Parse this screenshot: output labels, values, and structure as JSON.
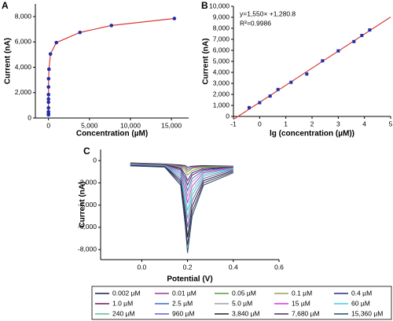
{
  "chart_data": [
    {
      "type": "line",
      "panel_label": "A",
      "x_label": "Concentration (µM)",
      "y_label": "Current (nA)",
      "x": [
        0.002,
        0.01,
        0.05,
        0.1,
        0.4,
        1,
        2.5,
        5,
        15,
        60,
        240,
        960,
        3840,
        7680,
        15360
      ],
      "values": [
        250,
        350,
        500,
        800,
        1250,
        1500,
        1850,
        2450,
        3100,
        3850,
        5050,
        5950,
        6750,
        7300,
        7850
      ],
      "marker_color": "#1f2fa8",
      "line_color": "#d63b3b",
      "xlim": [
        -1600,
        17100
      ],
      "xticks": [
        0,
        {
          "value": 5000,
          "label": "5,000"
        },
        {
          "value": 10000,
          "label": "10,000"
        },
        {
          "value": 15000,
          "label": "15,000"
        }
      ],
      "ylim": [
        0,
        9000
      ],
      "yticks": [
        0,
        {
          "value": 2000,
          "label": "2,000"
        },
        {
          "value": 4000,
          "label": "4,000"
        },
        {
          "value": 6000,
          "label": "6,000"
        },
        {
          "value": 8000,
          "label": "8,000"
        }
      ]
    },
    {
      "type": "scatter",
      "panel_label": "B",
      "x_label": "lg (concentration (µM))",
      "y_label": "Current (nA)",
      "x": [
        -0.4,
        0,
        0.4,
        0.7,
        1.2,
        1.8,
        2.4,
        3.0,
        3.6,
        3.9,
        4.2
      ],
      "values": [
        800,
        1250,
        1850,
        2450,
        3100,
        3850,
        5050,
        5950,
        6800,
        7350,
        7850
      ],
      "color": "#1f2fa8",
      "fit_line": {
        "slope": 1550,
        "intercept": 1280.8,
        "color": "#d63b3b"
      },
      "annotations": [
        "y=1,550× +1,280.8",
        "R²=0.9986"
      ],
      "xlim": [
        -1,
        5
      ],
      "xticks": [
        -1,
        0,
        1,
        2,
        3,
        4,
        5
      ],
      "ylim": [
        0,
        10000
      ],
      "yticks": [
        0,
        {
          "value": 1000,
          "label": "1,000"
        },
        {
          "value": 2000,
          "label": "2,000"
        },
        {
          "value": 3000,
          "label": "3,000"
        },
        {
          "value": 4000,
          "label": "4,000"
        },
        {
          "value": 5000,
          "label": "5,000"
        },
        {
          "value": 6000,
          "label": "6,000"
        },
        {
          "value": 7000,
          "label": "7,000"
        },
        {
          "value": 8000,
          "label": "8,000"
        },
        {
          "value": 9000,
          "label": "9,000"
        },
        {
          "value": 10000,
          "label": "10,000"
        }
      ]
    },
    {
      "type": "line",
      "panel_label": "C",
      "x_label": "Potential (V)",
      "y_label": "Current (nA)",
      "legend": "bottom",
      "x": [
        -0.05,
        0.1,
        0.17,
        0.19,
        0.2,
        0.22,
        0.27,
        0.4
      ],
      "series": [
        {
          "name": "0.002 µM",
          "color": "#1a1a4a",
          "values": [
            -200,
            -300,
            -400,
            -450,
            -600,
            -500,
            -450,
            -500
          ]
        },
        {
          "name": "0.01 µM",
          "color": "#9b3a8b",
          "values": [
            -220,
            -320,
            -450,
            -560,
            -800,
            -600,
            -500,
            -520
          ]
        },
        {
          "name": "0.05 µM",
          "color": "#5e9a3a",
          "values": [
            -240,
            -340,
            -500,
            -700,
            -1000,
            -700,
            -550,
            -540
          ]
        },
        {
          "name": "0.1 µM",
          "color": "#9aa04a",
          "values": [
            -260,
            -360,
            -550,
            -900,
            -1300,
            -900,
            -600,
            -560
          ]
        },
        {
          "name": "0.4 µM",
          "color": "#2a2a7a",
          "values": [
            -280,
            -380,
            -650,
            -1250,
            -1800,
            -1100,
            -700,
            -580
          ]
        },
        {
          "name": "1.0 µM",
          "color": "#6a1a5a",
          "values": [
            -300,
            -400,
            -750,
            -1550,
            -2200,
            -1300,
            -800,
            -600
          ]
        },
        {
          "name": "2.5 µM",
          "color": "#3a6fd8",
          "values": [
            -320,
            -420,
            -850,
            -1900,
            -2700,
            -1600,
            -900,
            -620
          ]
        },
        {
          "name": "5.0 µM",
          "color": "#a0a0a0",
          "values": [
            -340,
            -440,
            -950,
            -2250,
            -3200,
            -1900,
            -1000,
            -640
          ]
        },
        {
          "name": "15 µM",
          "color": "#d63ad6",
          "values": [
            -360,
            -460,
            -1100,
            -2650,
            -3800,
            -2300,
            -1100,
            -660
          ]
        },
        {
          "name": "60 µM",
          "color": "#40d0e0",
          "values": [
            -380,
            -480,
            -1250,
            -3150,
            -4500,
            -2700,
            -1250,
            -700
          ]
        },
        {
          "name": "240 µM",
          "color": "#5fb89a",
          "values": [
            -400,
            -500,
            -1400,
            -3650,
            -5200,
            -3100,
            -1400,
            -750
          ]
        },
        {
          "name": "960 µM",
          "color": "#6a5acd",
          "values": [
            -420,
            -520,
            -1600,
            -4200,
            -6000,
            -3600,
            -1600,
            -800
          ]
        },
        {
          "name": "3,840 µM",
          "color": "#222222",
          "values": [
            -440,
            -540,
            -1800,
            -4800,
            -6900,
            -4100,
            -1800,
            -900
          ]
        },
        {
          "name": "7,680 µM",
          "color": "#4b2a6b",
          "values": [
            -460,
            -560,
            -2000,
            -5300,
            -7600,
            -4600,
            -2000,
            -1000
          ]
        },
        {
          "name": "15,360 µM",
          "color": "#1f4f5f",
          "values": [
            -480,
            -580,
            -2200,
            -5800,
            -8300,
            -5000,
            -2200,
            -1100
          ]
        }
      ],
      "xlim": [
        -0.18,
        0.6
      ],
      "xticks": [
        {
          "value": 0,
          "label": "0.0"
        },
        0.2,
        0.4,
        0.6
      ],
      "ylim": [
        -8900,
        1000
      ],
      "yticks": [
        0,
        {
          "value": -2000,
          "label": "-2,000"
        },
        {
          "value": -4000,
          "label": "-4,000"
        },
        {
          "value": -6000,
          "label": "-6,000"
        },
        {
          "value": -8000,
          "label": "-8,000"
        }
      ]
    }
  ]
}
